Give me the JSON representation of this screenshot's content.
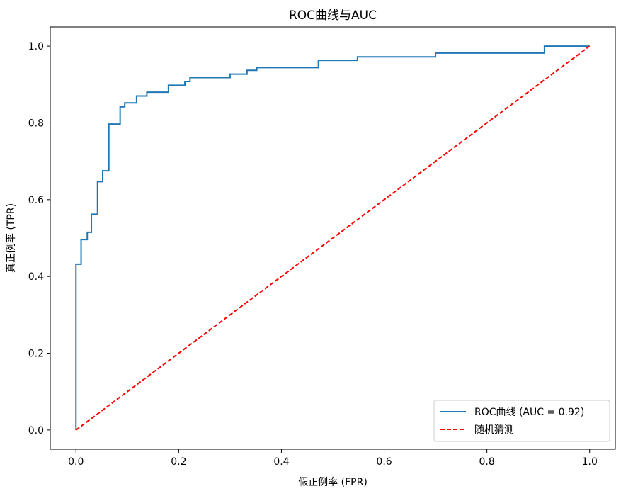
{
  "chart_data": {
    "type": "line",
    "title": "ROC曲线与AUC",
    "xlabel": "假正例率 (FPR)",
    "ylabel": "真正例率 (TPR)",
    "xlim": [
      -0.05,
      1.05
    ],
    "ylim": [
      -0.05,
      1.05
    ],
    "xticks": [
      "0.0",
      "0.2",
      "0.4",
      "0.6",
      "0.8",
      "1.0"
    ],
    "yticks": [
      "0.0",
      "0.2",
      "0.4",
      "0.6",
      "0.8",
      "1.0"
    ],
    "grid": false,
    "legend_position": "lower-right",
    "series": [
      {
        "name": "ROC曲线 (AUC = 0.92)",
        "color": "#1f77b4",
        "style": "solid",
        "x": [
          0,
          0,
          0.01,
          0.01,
          0.022,
          0.022,
          0.03,
          0.03,
          0.042,
          0.042,
          0.052,
          0.052,
          0.064,
          0.064,
          0.086,
          0.086,
          0.095,
          0.095,
          0.118,
          0.118,
          0.138,
          0.138,
          0.18,
          0.18,
          0.212,
          0.212,
          0.222,
          0.222,
          0.3,
          0.3,
          0.333,
          0.333,
          0.352,
          0.352,
          0.472,
          0.472,
          0.548,
          0.548,
          0.7,
          0.7,
          0.912,
          0.912,
          1.0
        ],
        "y": [
          0,
          0.432,
          0.432,
          0.496,
          0.496,
          0.515,
          0.515,
          0.562,
          0.562,
          0.647,
          0.647,
          0.675,
          0.675,
          0.797,
          0.797,
          0.842,
          0.842,
          0.852,
          0.852,
          0.87,
          0.87,
          0.88,
          0.88,
          0.898,
          0.898,
          0.908,
          0.908,
          0.918,
          0.918,
          0.927,
          0.927,
          0.937,
          0.937,
          0.944,
          0.944,
          0.963,
          0.963,
          0.972,
          0.972,
          0.982,
          0.982,
          1.0,
          1.0
        ]
      },
      {
        "name": "随机猜测",
        "color": "#ff0000",
        "style": "dashed",
        "x": [
          0,
          1
        ],
        "y": [
          0,
          1
        ]
      }
    ]
  }
}
